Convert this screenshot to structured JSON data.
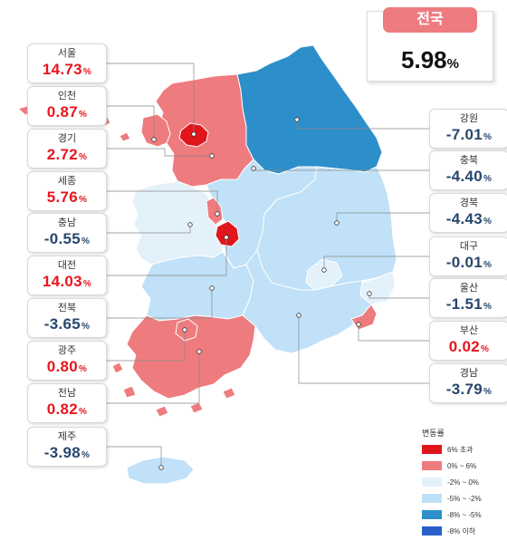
{
  "national": {
    "label": "전국",
    "value": "5.98",
    "unit": "%"
  },
  "regions": [
    {
      "id": "seoul",
      "name": "서울",
      "value": "14.73",
      "unit": "%",
      "sign": "pos"
    },
    {
      "id": "incheon",
      "name": "인천",
      "value": "0.87",
      "unit": "%",
      "sign": "pos"
    },
    {
      "id": "gyeonggi",
      "name": "경기",
      "value": "2.72",
      "unit": "%",
      "sign": "pos"
    },
    {
      "id": "sejong",
      "name": "세종",
      "value": "5.76",
      "unit": "%",
      "sign": "pos"
    },
    {
      "id": "chungnam",
      "name": "충남",
      "value": "-0.55",
      "unit": "%",
      "sign": "neg"
    },
    {
      "id": "daejeon",
      "name": "대전",
      "value": "14.03",
      "unit": "%",
      "sign": "pos"
    },
    {
      "id": "jeonbuk",
      "name": "전북",
      "value": "-3.65",
      "unit": "%",
      "sign": "neg"
    },
    {
      "id": "gwangju",
      "name": "광주",
      "value": "0.80",
      "unit": "%",
      "sign": "pos"
    },
    {
      "id": "jeonnam",
      "name": "전남",
      "value": "0.82",
      "unit": "%",
      "sign": "pos"
    },
    {
      "id": "jeju",
      "name": "제주",
      "value": "-3.98",
      "unit": "%",
      "sign": "neg"
    },
    {
      "id": "gangwon",
      "name": "강원",
      "value": "-7.01",
      "unit": "%",
      "sign": "neg"
    },
    {
      "id": "chungbuk",
      "name": "충북",
      "value": "-4.40",
      "unit": "%",
      "sign": "neg"
    },
    {
      "id": "gyeongbuk",
      "name": "경북",
      "value": "-4.43",
      "unit": "%",
      "sign": "neg"
    },
    {
      "id": "daegu",
      "name": "대구",
      "value": "-0.01",
      "unit": "%",
      "sign": "neg"
    },
    {
      "id": "ulsan",
      "name": "울산",
      "value": "-1.51",
      "unit": "%",
      "sign": "neg"
    },
    {
      "id": "busan",
      "name": "부산",
      "value": "0.02",
      "unit": "%",
      "sign": "pos"
    },
    {
      "id": "gyeongnam",
      "name": "경남",
      "value": "-3.79",
      "unit": "%",
      "sign": "neg"
    }
  ],
  "legend": {
    "title": "변동률",
    "items": [
      {
        "label": "6% 초과",
        "color": "#e0161c"
      },
      {
        "label": "0% ~ 6%",
        "color": "#ee7b7e"
      },
      {
        "label": "-2% ~ 0%",
        "color": "#e3f1fb"
      },
      {
        "label": "-5% ~ -2%",
        "color": "#c0e1f7"
      },
      {
        "label": "-8% ~ -5%",
        "color": "#2d8fca"
      },
      {
        "label": "-8% 이하",
        "color": "#2a5fc8"
      }
    ]
  },
  "fills": {
    "gangwon": "#2d8fca",
    "gyeonggi": "#ee7b7e",
    "seoul": "#e0161c",
    "incheon": "#ee7b7e",
    "chungbuk": "#c0e1f7",
    "chungnam": "#e3f1fb",
    "sejong": "#ee7b7e",
    "daejeon": "#e0161c",
    "gyeongbuk": "#c0e1f7",
    "daegu": "#e3f1fb",
    "ulsan": "#e3f1fb",
    "busan": "#ee7b7e",
    "gyeongnam": "#c0e1f7",
    "jeonbuk": "#c0e1f7",
    "gwangju": "#ee7b7e",
    "jeonnam": "#ee7b7e",
    "jeju": "#c0e1f7"
  }
}
